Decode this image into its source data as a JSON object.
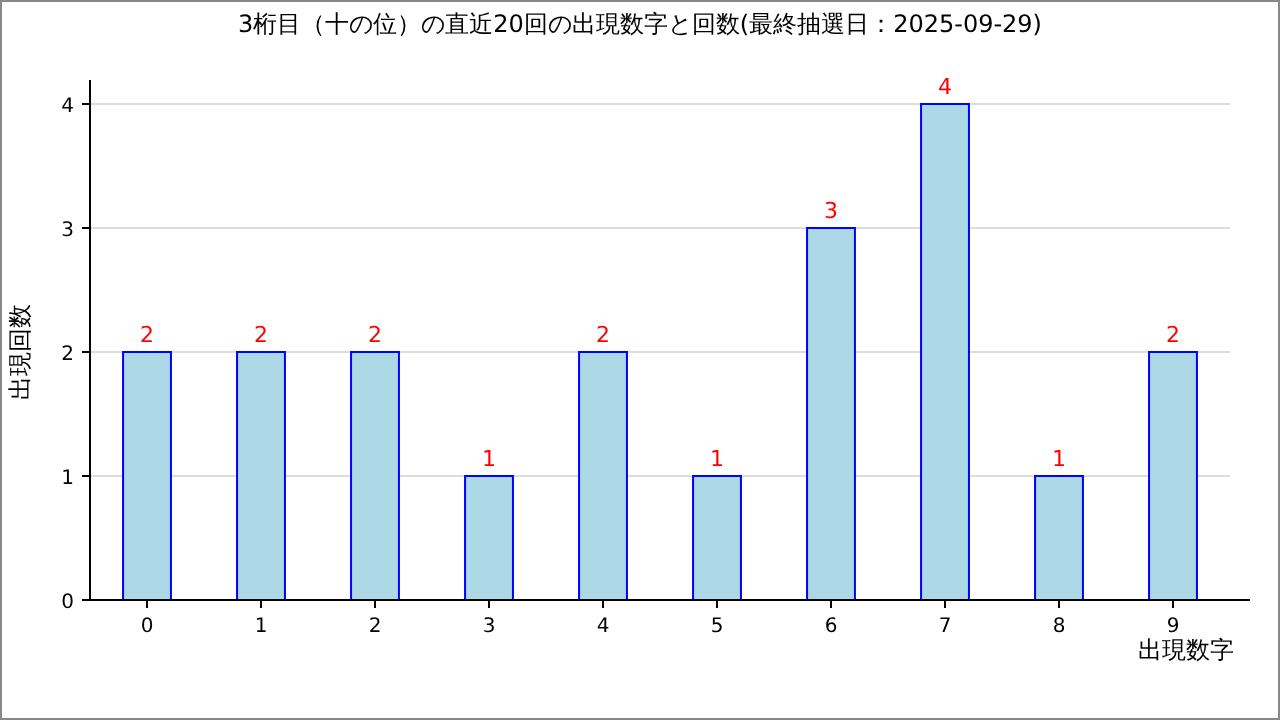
{
  "chart_data": {
    "type": "bar",
    "title": "3桁目（十の位）の直近20回の出現数字と回数(最終抽選日：2025-09-29)",
    "xlabel": "出現数字",
    "ylabel": "出現回数",
    "categories": [
      "0",
      "1",
      "2",
      "3",
      "4",
      "5",
      "6",
      "7",
      "8",
      "9"
    ],
    "values": [
      2,
      2,
      2,
      1,
      2,
      1,
      3,
      4,
      1,
      2
    ],
    "color": "#add8e6",
    "ylim": [
      0,
      4
    ],
    "yticks": [
      0,
      1,
      2,
      3,
      4
    ],
    "grid": "y",
    "data_labels": true
  }
}
